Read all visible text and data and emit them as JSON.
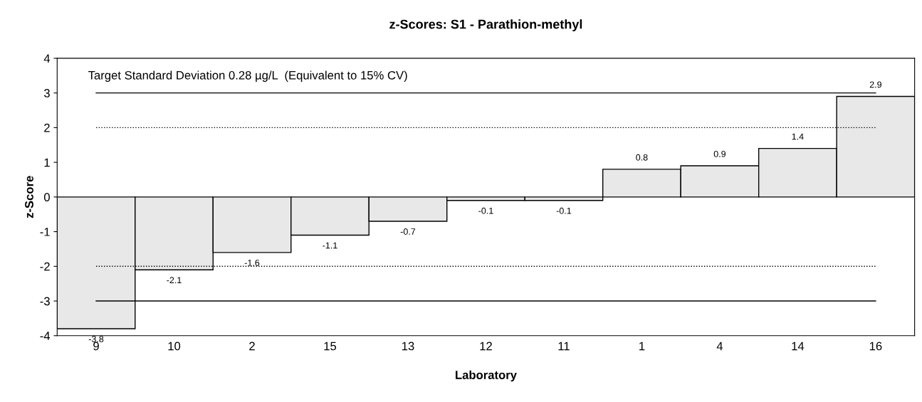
{
  "chart_data": {
    "type": "bar",
    "title": "z-Scores: S1 - Parathion-methyl",
    "xlabel": "Laboratory",
    "ylabel": "z-Score",
    "categories": [
      "9",
      "10",
      "2",
      "15",
      "13",
      "12",
      "11",
      "1",
      "4",
      "14",
      "16"
    ],
    "values": [
      -3.8,
      -2.1,
      -1.6,
      -1.1,
      -0.7,
      -0.1,
      -0.1,
      0.8,
      0.9,
      1.4,
      2.9
    ],
    "color": "#e8e8e8",
    "data_labels": true,
    "ylim": [
      -4,
      4
    ],
    "yticks": [
      -4,
      -3,
      -2,
      -1,
      0,
      1,
      2,
      3,
      4
    ],
    "grid": false,
    "annotations": [
      "Target Standard Deviation 0.28 µg/L  (Equivalent to 15% CV)"
    ],
    "ref_lines": [
      {
        "axis": "y",
        "value": 3,
        "line_style": "solid",
        "color": "#000000"
      },
      {
        "axis": "y",
        "value": 2,
        "line_style": "dotted",
        "color": "#000000"
      },
      {
        "axis": "y",
        "value": -2,
        "line_style": "dotted",
        "color": "#000000"
      },
      {
        "axis": "y",
        "value": -3,
        "line_style": "solid",
        "color": "#000000"
      }
    ]
  }
}
